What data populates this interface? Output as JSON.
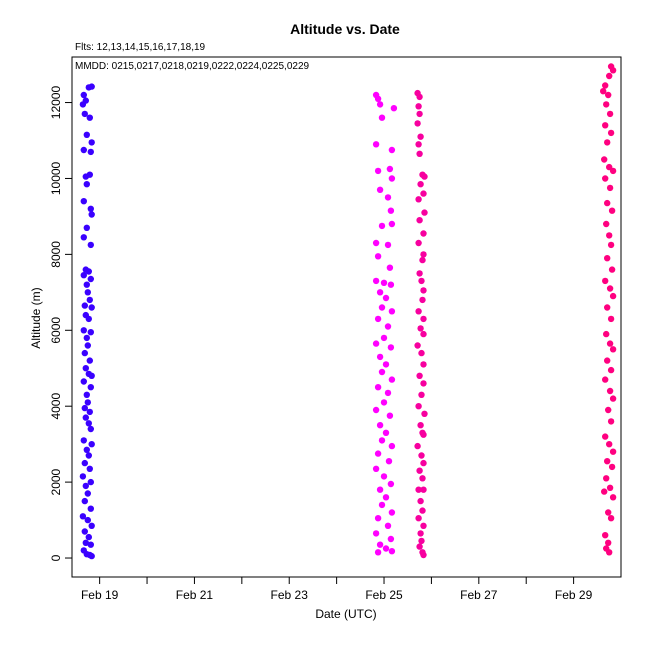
{
  "chart_data": {
    "type": "scatter",
    "title": "Altitude  vs. Date",
    "annotations": [
      "Flts: 12,13,14,15,16,17,18,19",
      "MMDD: 0215,0217,0218,0219,0222,0224,0225,0229"
    ],
    "xlabel": "Date (UTC)",
    "ylabel": "Altitude (m)",
    "x_ticks": [
      "Feb 19",
      "Feb 21",
      "Feb 23",
      "Feb 25",
      "Feb 27",
      "Feb 29"
    ],
    "y_ticks": [
      0,
      2000,
      4000,
      6000,
      8000,
      10000,
      12000
    ],
    "xlim": [
      "2016-02-18T10:00",
      "2016-02-30T00:00"
    ],
    "ylim": [
      -500,
      13200
    ],
    "grid": false,
    "point_colors": [
      "#3a00ff",
      "#ff00ff",
      "#f7009f",
      "#ff0080"
    ],
    "series": [
      {
        "color": "#3a00ff",
        "points": [
          [
            "2016-02-18T16:00",
            12200
          ],
          [
            "2016-02-18T17:00",
            12050
          ],
          [
            "2016-02-18T15:30",
            11950
          ],
          [
            "2016-02-18T18:30",
            12400
          ],
          [
            "2016-02-18T20:00",
            12420
          ],
          [
            "2016-02-18T16:30",
            11700
          ],
          [
            "2016-02-18T19:00",
            11600
          ],
          [
            "2016-02-18T17:30",
            11150
          ],
          [
            "2016-02-18T20:00",
            10950
          ],
          [
            "2016-02-18T16:00",
            10750
          ],
          [
            "2016-02-18T19:30",
            10700
          ],
          [
            "2016-02-18T17:00",
            10050
          ],
          [
            "2016-02-18T19:00",
            10100
          ],
          [
            "2016-02-18T17:30",
            9850
          ],
          [
            "2016-02-18T16:00",
            9400
          ],
          [
            "2016-02-18T19:30",
            9200
          ],
          [
            "2016-02-18T20:00",
            9050
          ],
          [
            "2016-02-18T17:30",
            8700
          ],
          [
            "2016-02-18T16:00",
            8450
          ],
          [
            "2016-02-18T19:30",
            8250
          ],
          [
            "2016-02-18T17:00",
            7600
          ],
          [
            "2016-02-18T18:30",
            7550
          ],
          [
            "2016-02-18T16:00",
            7450
          ],
          [
            "2016-02-18T19:30",
            7350
          ],
          [
            "2016-02-18T17:30",
            7200
          ],
          [
            "2016-02-18T18:00",
            7000
          ],
          [
            "2016-02-18T19:00",
            6800
          ],
          [
            "2016-02-18T16:30",
            6650
          ],
          [
            "2016-02-18T20:00",
            6600
          ],
          [
            "2016-02-18T17:00",
            6400
          ],
          [
            "2016-02-18T18:30",
            6300
          ],
          [
            "2016-02-18T16:00",
            6000
          ],
          [
            "2016-02-18T19:30",
            5950
          ],
          [
            "2016-02-18T17:30",
            5800
          ],
          [
            "2016-02-18T18:00",
            5600
          ],
          [
            "2016-02-18T16:30",
            5400
          ],
          [
            "2016-02-18T19:00",
            5200
          ],
          [
            "2016-02-18T17:00",
            5000
          ],
          [
            "2016-02-18T18:30",
            4850
          ],
          [
            "2016-02-18T20:00",
            4800
          ],
          [
            "2016-02-18T16:00",
            4650
          ],
          [
            "2016-02-18T19:30",
            4500
          ],
          [
            "2016-02-18T17:30",
            4300
          ],
          [
            "2016-02-18T18:00",
            4100
          ],
          [
            "2016-02-18T16:30",
            3950
          ],
          [
            "2016-02-18T19:00",
            3850
          ],
          [
            "2016-02-18T17:00",
            3700
          ],
          [
            "2016-02-18T18:30",
            3550
          ],
          [
            "2016-02-18T19:30",
            3400
          ],
          [
            "2016-02-18T16:00",
            3100
          ],
          [
            "2016-02-18T20:00",
            3000
          ],
          [
            "2016-02-18T17:30",
            2850
          ],
          [
            "2016-02-18T18:30",
            2700
          ],
          [
            "2016-02-18T16:30",
            2500
          ],
          [
            "2016-02-18T19:00",
            2350
          ],
          [
            "2016-02-18T15:30",
            2150
          ],
          [
            "2016-02-18T19:30",
            2000
          ],
          [
            "2016-02-18T17:00",
            1900
          ],
          [
            "2016-02-18T18:00",
            1700
          ],
          [
            "2016-02-18T16:30",
            1500
          ],
          [
            "2016-02-18T19:30",
            1300
          ],
          [
            "2016-02-18T15:30",
            1100
          ],
          [
            "2016-02-18T18:00",
            1000
          ],
          [
            "2016-02-18T20:00",
            850
          ],
          [
            "2016-02-18T16:30",
            700
          ],
          [
            "2016-02-18T18:30",
            550
          ],
          [
            "2016-02-18T17:00",
            400
          ],
          [
            "2016-02-18T19:30",
            350
          ],
          [
            "2016-02-18T16:00",
            200
          ],
          [
            "2016-02-18T17:30",
            100
          ],
          [
            "2016-02-18T19:00",
            80
          ],
          [
            "2016-02-18T20:00",
            50
          ]
        ]
      },
      {
        "color": "#ff00ff",
        "points": [
          [
            "2016-02-24T20:00",
            12200
          ],
          [
            "2016-02-24T21:00",
            12100
          ],
          [
            "2016-02-24T22:00",
            11950
          ],
          [
            "2016-02-25T05:00",
            11850
          ],
          [
            "2016-02-24T23:00",
            11600
          ],
          [
            "2016-02-24T20:00",
            10900
          ],
          [
            "2016-02-25T04:00",
            10750
          ],
          [
            "2016-02-24T21:00",
            10200
          ],
          [
            "2016-02-25T03:00",
            10250
          ],
          [
            "2016-02-25T04:00",
            10000
          ],
          [
            "2016-02-24T22:00",
            9700
          ],
          [
            "2016-02-25T02:00",
            9500
          ],
          [
            "2016-02-25T03:30",
            9150
          ],
          [
            "2016-02-24T23:00",
            8750
          ],
          [
            "2016-02-25T04:00",
            8800
          ],
          [
            "2016-02-24T20:00",
            8300
          ],
          [
            "2016-02-25T02:00",
            8250
          ],
          [
            "2016-02-24T21:00",
            7950
          ],
          [
            "2016-02-25T03:00",
            7650
          ],
          [
            "2016-02-24T20:00",
            7300
          ],
          [
            "2016-02-25T00:00",
            7250
          ],
          [
            "2016-02-25T03:30",
            7200
          ],
          [
            "2016-02-24T22:00",
            7000
          ],
          [
            "2016-02-25T01:00",
            6850
          ],
          [
            "2016-02-24T23:00",
            6600
          ],
          [
            "2016-02-25T04:00",
            6500
          ],
          [
            "2016-02-24T21:00",
            6300
          ],
          [
            "2016-02-25T02:00",
            6100
          ],
          [
            "2016-02-25T00:00",
            5800
          ],
          [
            "2016-02-24T20:00",
            5650
          ],
          [
            "2016-02-25T03:30",
            5550
          ],
          [
            "2016-02-24T22:00",
            5300
          ],
          [
            "2016-02-25T01:00",
            5100
          ],
          [
            "2016-02-24T23:00",
            4900
          ],
          [
            "2016-02-25T04:00",
            4700
          ],
          [
            "2016-02-24T21:00",
            4500
          ],
          [
            "2016-02-25T02:00",
            4350
          ],
          [
            "2016-02-25T00:00",
            4100
          ],
          [
            "2016-02-24T20:00",
            3900
          ],
          [
            "2016-02-25T03:00",
            3750
          ],
          [
            "2016-02-24T22:00",
            3500
          ],
          [
            "2016-02-25T01:00",
            3300
          ],
          [
            "2016-02-24T23:00",
            3100
          ],
          [
            "2016-02-25T04:00",
            2950
          ],
          [
            "2016-02-24T21:00",
            2750
          ],
          [
            "2016-02-25T02:30",
            2550
          ],
          [
            "2016-02-24T20:00",
            2350
          ],
          [
            "2016-02-25T00:00",
            2150
          ],
          [
            "2016-02-25T03:30",
            1950
          ],
          [
            "2016-02-24T22:00",
            1800
          ],
          [
            "2016-02-25T01:00",
            1600
          ],
          [
            "2016-02-24T23:00",
            1400
          ],
          [
            "2016-02-25T04:00",
            1200
          ],
          [
            "2016-02-24T21:00",
            1050
          ],
          [
            "2016-02-25T02:00",
            850
          ],
          [
            "2016-02-24T20:00",
            650
          ],
          [
            "2016-02-25T03:30",
            500
          ],
          [
            "2016-02-24T22:00",
            350
          ],
          [
            "2016-02-25T01:00",
            250
          ],
          [
            "2016-02-24T21:00",
            150
          ],
          [
            "2016-02-25T04:00",
            180
          ]
        ]
      },
      {
        "color": "#f7009f",
        "points": [
          [
            "2016-02-25T17:00",
            12250
          ],
          [
            "2016-02-25T18:00",
            12150
          ],
          [
            "2016-02-25T17:30",
            11900
          ],
          [
            "2016-02-25T18:00",
            11700
          ],
          [
            "2016-02-25T17:00",
            11450
          ],
          [
            "2016-02-25T18:30",
            11100
          ],
          [
            "2016-02-25T17:30",
            10900
          ],
          [
            "2016-02-25T18:00",
            10650
          ],
          [
            "2016-02-25T19:30",
            10100
          ],
          [
            "2016-02-25T20:30",
            10050
          ],
          [
            "2016-02-25T18:30",
            9850
          ],
          [
            "2016-02-25T20:00",
            9600
          ],
          [
            "2016-02-25T17:30",
            9450
          ],
          [
            "2016-02-25T20:30",
            9100
          ],
          [
            "2016-02-25T18:00",
            8900
          ],
          [
            "2016-02-25T20:00",
            8550
          ],
          [
            "2016-02-25T17:30",
            8300
          ],
          [
            "2016-02-25T20:00",
            8000
          ],
          [
            "2016-02-25T19:30",
            7850
          ],
          [
            "2016-02-25T18:00",
            7500
          ],
          [
            "2016-02-25T19:00",
            7300
          ],
          [
            "2016-02-25T20:00",
            7050
          ],
          [
            "2016-02-25T19:30",
            6800
          ],
          [
            "2016-02-25T17:30",
            6500
          ],
          [
            "2016-02-25T20:00",
            6300
          ],
          [
            "2016-02-25T18:30",
            6050
          ],
          [
            "2016-02-25T20:00",
            5900
          ],
          [
            "2016-02-25T17:00",
            5600
          ],
          [
            "2016-02-25T19:00",
            5400
          ],
          [
            "2016-02-25T20:00",
            5100
          ],
          [
            "2016-02-25T18:00",
            4800
          ],
          [
            "2016-02-25T20:00",
            4600
          ],
          [
            "2016-02-25T19:00",
            4300
          ],
          [
            "2016-02-25T17:30",
            4000
          ],
          [
            "2016-02-25T20:30",
            3800
          ],
          [
            "2016-02-25T18:30",
            3500
          ],
          [
            "2016-02-25T19:30",
            3300
          ],
          [
            "2016-02-25T20:00",
            3250
          ],
          [
            "2016-02-25T17:00",
            2950
          ],
          [
            "2016-02-25T19:00",
            2700
          ],
          [
            "2016-02-25T20:00",
            2500
          ],
          [
            "2016-02-25T18:00",
            2300
          ],
          [
            "2016-02-25T19:30",
            2100
          ],
          [
            "2016-02-25T17:30",
            1800
          ],
          [
            "2016-02-25T20:00",
            1800
          ],
          [
            "2016-02-25T18:30",
            1500
          ],
          [
            "2016-02-25T19:30",
            1250
          ],
          [
            "2016-02-25T17:30",
            1050
          ],
          [
            "2016-02-25T20:00",
            850
          ],
          [
            "2016-02-25T18:30",
            650
          ],
          [
            "2016-02-25T19:00",
            450
          ],
          [
            "2016-02-25T18:00",
            300
          ],
          [
            "2016-02-25T19:30",
            150
          ],
          [
            "2016-02-25T20:00",
            80
          ]
        ]
      },
      {
        "color": "#ff0080",
        "points": [
          [
            "2016-02-29T19:00",
            12950
          ],
          [
            "2016-02-29T20:00",
            12850
          ],
          [
            "2016-02-29T18:00",
            12700
          ],
          [
            "2016-02-29T16:00",
            12450
          ],
          [
            "2016-02-29T15:00",
            12300
          ],
          [
            "2016-02-29T17:30",
            12200
          ],
          [
            "2016-02-29T16:30",
            11950
          ],
          [
            "2016-02-29T18:30",
            11700
          ],
          [
            "2016-02-29T16:00",
            11400
          ],
          [
            "2016-02-29T19:00",
            11200
          ],
          [
            "2016-02-29T17:00",
            10950
          ],
          [
            "2016-02-29T15:30",
            10500
          ],
          [
            "2016-02-29T18:00",
            10300
          ],
          [
            "2016-02-29T20:00",
            10200
          ],
          [
            "2016-02-29T16:00",
            10000
          ],
          [
            "2016-02-29T18:30",
            9750
          ],
          [
            "2016-02-29T17:00",
            9350
          ],
          [
            "2016-02-29T19:30",
            9150
          ],
          [
            "2016-02-29T16:30",
            8800
          ],
          [
            "2016-02-29T18:00",
            8500
          ],
          [
            "2016-02-29T19:00",
            8250
          ],
          [
            "2016-02-29T17:00",
            7900
          ],
          [
            "2016-02-29T19:30",
            7600
          ],
          [
            "2016-02-29T16:00",
            7300
          ],
          [
            "2016-02-29T18:30",
            7100
          ],
          [
            "2016-02-29T20:00",
            6900
          ],
          [
            "2016-02-29T17:00",
            6600
          ],
          [
            "2016-02-29T19:00",
            6300
          ],
          [
            "2016-02-29T16:30",
            5900
          ],
          [
            "2016-02-29T18:30",
            5650
          ],
          [
            "2016-02-29T20:00",
            5500
          ],
          [
            "2016-02-29T17:00",
            5200
          ],
          [
            "2016-02-29T19:00",
            4950
          ],
          [
            "2016-02-29T16:00",
            4700
          ],
          [
            "2016-02-29T18:30",
            4400
          ],
          [
            "2016-02-29T20:00",
            4200
          ],
          [
            "2016-02-29T17:30",
            3900
          ],
          [
            "2016-02-29T19:00",
            3600
          ],
          [
            "2016-02-29T16:00",
            3200
          ],
          [
            "2016-02-29T18:00",
            3000
          ],
          [
            "2016-02-29T20:00",
            2800
          ],
          [
            "2016-02-29T17:00",
            2550
          ],
          [
            "2016-02-29T19:30",
            2400
          ],
          [
            "2016-02-29T16:30",
            2100
          ],
          [
            "2016-02-29T18:30",
            1850
          ],
          [
            "2016-02-29T15:30",
            1750
          ],
          [
            "2016-02-29T20:00",
            1600
          ],
          [
            "2016-02-29T17:30",
            1200
          ],
          [
            "2016-02-29T19:00",
            1050
          ],
          [
            "2016-02-29T16:00",
            600
          ],
          [
            "2016-02-29T17:30",
            400
          ],
          [
            "2016-02-29T16:30",
            250
          ],
          [
            "2016-02-29T18:00",
            150
          ]
        ]
      }
    ]
  }
}
